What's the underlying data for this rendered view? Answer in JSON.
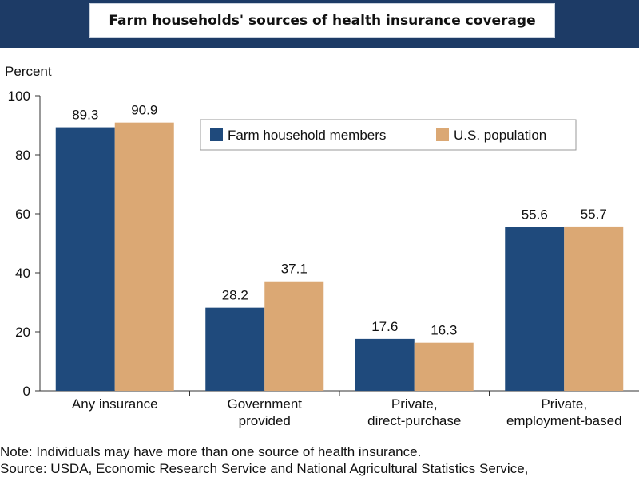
{
  "chart_data": {
    "type": "bar",
    "title": "Farm households' sources of health insurance coverage",
    "ylabel": "Percent",
    "xlabel": "",
    "ylim": [
      0,
      100
    ],
    "yticks": [
      "0",
      "20",
      "40",
      "60",
      "80",
      "100"
    ],
    "categories": [
      [
        "Any insurance"
      ],
      [
        "Government",
        "provided"
      ],
      [
        "Private,",
        "direct-purchase"
      ],
      [
        "Private,",
        "employment-based"
      ]
    ],
    "series": [
      {
        "name": "Farm household members",
        "values": [
          89.3,
          28.2,
          17.6,
          55.6
        ],
        "labels": [
          "89.3",
          "28.2",
          "17.6",
          "55.6"
        ],
        "color": "#1f4a7c"
      },
      {
        "name": "U.S. population",
        "values": [
          90.9,
          37.1,
          16.3,
          55.7
        ],
        "labels": [
          "90.9",
          "37.1",
          "16.3",
          "55.7"
        ],
        "color": "#dba874"
      }
    ],
    "legend_position": "top-right",
    "grid": false
  },
  "notes": {
    "note": "Note: Individuals may have more than one source of health insurance.",
    "source": "Source: USDA, Economic Research Service and National Agricultural Statistics Service,"
  },
  "colors": {
    "header": "#1d3b66",
    "axis": "#333333"
  }
}
